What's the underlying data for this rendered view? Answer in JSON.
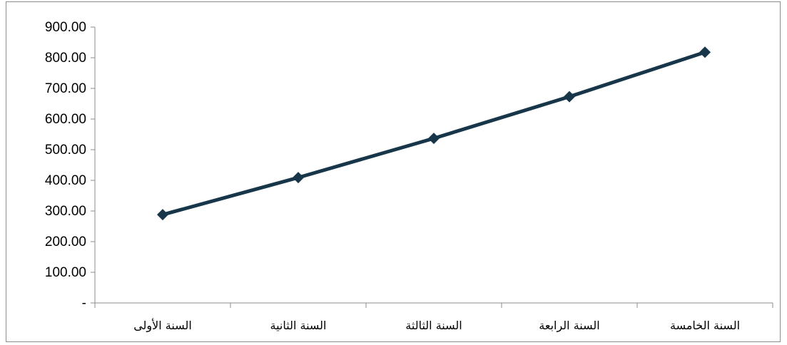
{
  "chart_data": {
    "type": "line",
    "categories": [
      "السنة الأولى",
      "السنة الثانية",
      "السنة الثالثة",
      "السنة الرابعة",
      "السنة الخامسة"
    ],
    "series": [
      {
        "values": [
          288,
          409,
          537,
          673,
          818
        ]
      }
    ],
    "ylim": [
      0,
      900
    ],
    "yticks": [
      0,
      100,
      200,
      300,
      400,
      500,
      600,
      700,
      800,
      900
    ],
    "ytick_labels": [
      "-",
      "100.00",
      "200.00",
      "300.00",
      "400.00",
      "500.00",
      "600.00",
      "700.00",
      "800.00",
      "900.00"
    ],
    "grid": false,
    "legend": "none",
    "marker": "diamond",
    "colors": {
      "line": "#17364a",
      "marker": "#17364a",
      "axis": "#8c8c8c"
    }
  }
}
